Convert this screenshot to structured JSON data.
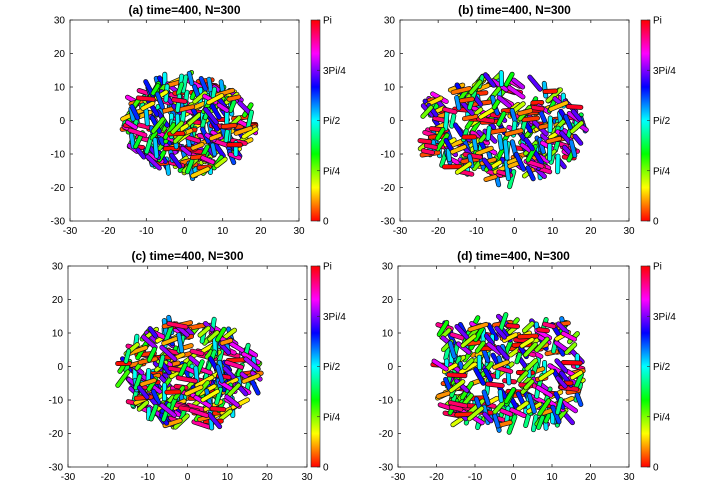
{
  "figure": {
    "colorbar": {
      "tick_labels": [
        "0",
        "Pi/4",
        "Pi/2",
        "3Pi/4",
        "Pi"
      ],
      "tick_values": [
        0,
        0.7854,
        1.5708,
        2.3562,
        3.1416
      ],
      "range": [
        0,
        3.1416
      ],
      "colormap": "hsv",
      "colors": [
        "#ff0000",
        "#ffff00",
        "#00ff00",
        "#00ffff",
        "#0000ff",
        "#ff00ff",
        "#ff0000"
      ]
    }
  },
  "chart_data": [
    {
      "type": "scatter",
      "title": "(a) time=400, N=300",
      "xlim": [
        -30,
        30
      ],
      "ylim": [
        -30,
        30
      ],
      "xticks": [
        -30,
        -20,
        -10,
        0,
        10,
        20,
        30
      ],
      "yticks": [
        -30,
        -20,
        -10,
        0,
        10,
        20,
        30
      ],
      "grid": false,
      "markers": "rods colored by orientation angle (0 to Pi)",
      "n_particles": 300,
      "colony_extent": {
        "x": [
          -17,
          19
        ],
        "y": [
          -17,
          14
        ]
      },
      "shape": "circular cluster"
    },
    {
      "type": "scatter",
      "title": "(b) time=400, N=300",
      "xlim": [
        -30,
        30
      ],
      "ylim": [
        -30,
        30
      ],
      "xticks": [
        -30,
        -20,
        -10,
        0,
        10,
        20,
        30
      ],
      "yticks": [
        -30,
        -20,
        -10,
        0,
        10,
        20,
        30
      ],
      "grid": false,
      "markers": "rods colored by orientation angle (0 to Pi)",
      "n_particles": 300,
      "colony_extent": {
        "x": [
          -27,
          20
        ],
        "y": [
          -19,
          14
        ]
      },
      "shape": "elongated cluster"
    },
    {
      "type": "scatter",
      "title": "(c) time=400, N=300",
      "xlim": [
        -30,
        30
      ],
      "ylim": [
        -30,
        30
      ],
      "xticks": [
        -30,
        -20,
        -10,
        0,
        10,
        20,
        30
      ],
      "yticks": [
        -30,
        -20,
        -10,
        0,
        10,
        20,
        30
      ],
      "grid": false,
      "markers": "rods colored by orientation angle (0 to Pi)",
      "n_particles": 300,
      "colony_extent": {
        "x": [
          -18,
          19
        ],
        "y": [
          -19,
          15
        ]
      },
      "shape": "circular cluster"
    },
    {
      "type": "scatter",
      "title": "(d) time=400, N=300",
      "xlim": [
        -30,
        30
      ],
      "ylim": [
        -30,
        30
      ],
      "xticks": [
        -30,
        -20,
        -10,
        0,
        10,
        20,
        30
      ],
      "yticks": [
        -30,
        -20,
        -10,
        0,
        10,
        20,
        30
      ],
      "grid": false,
      "markers": "rods colored by orientation angle (0 to Pi)",
      "n_particles": 300,
      "colony_extent": {
        "x": [
          -21,
          19
        ],
        "y": [
          -19,
          15
        ]
      },
      "shape": "rounded rectangular cluster"
    }
  ]
}
